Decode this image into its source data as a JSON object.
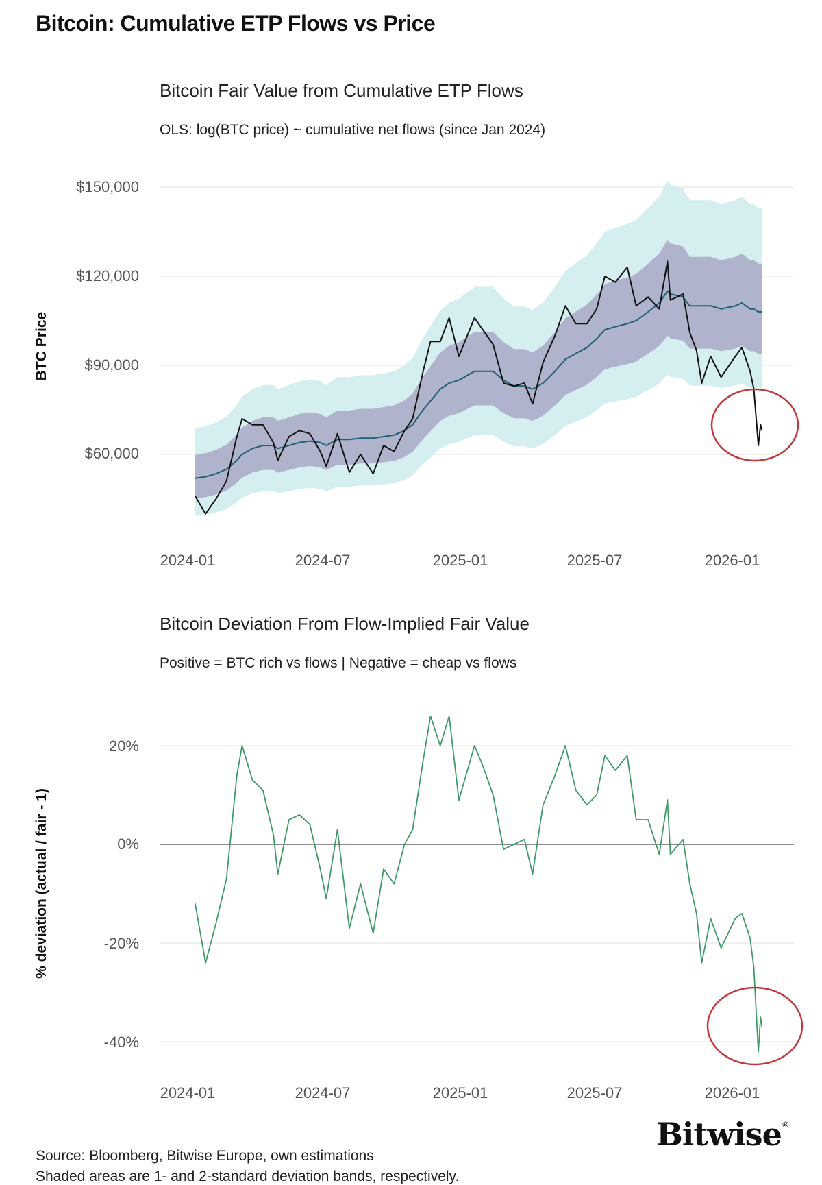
{
  "title": "Bitcoin: Cumulative ETP Flows vs Price",
  "footer": {
    "source": "Source: Bloomberg, Bitwise Europe, own estimations",
    "note": "Shaded areas are 1- and 2-standard deviation bands, respectively.",
    "logo": "Bitwise"
  },
  "colors": {
    "price": "#111111",
    "fair_value": "#1f5f70",
    "band_1sd": "#a9a8c6",
    "band_2sd": "#d5eef0",
    "deviation": "#3f9a68",
    "zero_line": "#666666",
    "highlight_circle": "#c0393b"
  },
  "chart_data": [
    {
      "type": "line",
      "title": "Bitcoin Fair Value from Cumulative ETP Flows",
      "subtitle": "OLS: log(BTC price) ~ cumulative net flows (since Jan 2024)",
      "ylabel": "BTC Price",
      "xlabel": "",
      "y_ticks": [
        "$60,000",
        "$90,000",
        "$120,000",
        "$150,000"
      ],
      "y_tick_values": [
        60000,
        90000,
        120000,
        150000
      ],
      "x_ticks": [
        "2024-01",
        "2024-07",
        "2025-01",
        "2025-07",
        "2026-01"
      ],
      "grid": true,
      "band_log_sd": 0.14,
      "bands": [
        "1-standard deviation",
        "2-standard deviation"
      ],
      "highlight": "circle around Feb 2026 price drop",
      "x": [
        "2024-01-11",
        "2024-01-25",
        "2024-02-08",
        "2024-02-22",
        "2024-03-07",
        "2024-03-14",
        "2024-03-28",
        "2024-04-11",
        "2024-04-25",
        "2024-05-01",
        "2024-05-16",
        "2024-05-30",
        "2024-06-13",
        "2024-06-27",
        "2024-07-05",
        "2024-07-20",
        "2024-08-05",
        "2024-08-20",
        "2024-09-06",
        "2024-09-20",
        "2024-10-04",
        "2024-10-18",
        "2024-10-29",
        "2024-11-12",
        "2024-11-22",
        "2024-12-05",
        "2024-12-17",
        "2024-12-30",
        "2025-01-20",
        "2025-01-31",
        "2025-02-14",
        "2025-02-28",
        "2025-03-14",
        "2025-03-28",
        "2025-04-08",
        "2025-04-22",
        "2025-05-08",
        "2025-05-22",
        "2025-06-05",
        "2025-06-20",
        "2025-07-03",
        "2025-07-14",
        "2025-07-28",
        "2025-08-13",
        "2025-08-25",
        "2025-09-10",
        "2025-09-25",
        "2025-10-06",
        "2025-10-10",
        "2025-10-27",
        "2025-11-05",
        "2025-11-14",
        "2025-11-21",
        "2025-12-03",
        "2025-12-17",
        "2026-01-05",
        "2026-01-14",
        "2026-01-25",
        "2026-01-30",
        "2026-02-05",
        "2026-02-08",
        "2026-02-10"
      ],
      "series": [
        {
          "key": "price",
          "values": [
            46000,
            40000,
            45000,
            51000,
            66000,
            72000,
            70000,
            70000,
            64000,
            58000,
            66000,
            68000,
            67000,
            61000,
            56000,
            67000,
            54000,
            60000,
            53500,
            63000,
            61000,
            68000,
            72000,
            88000,
            98000,
            98000,
            106000,
            93000,
            106000,
            102000,
            97000,
            84000,
            83000,
            84000,
            77000,
            91000,
            100000,
            110000,
            104000,
            104000,
            109000,
            120000,
            118000,
            123000,
            110000,
            113000,
            109000,
            125000,
            112000,
            114000,
            101000,
            95000,
            84000,
            93000,
            86000,
            93000,
            96000,
            88000,
            82000,
            63000,
            70000,
            68000
          ]
        },
        {
          "key": "fair_value",
          "values": [
            52000,
            52500,
            53500,
            55000,
            58000,
            60000,
            62000,
            63000,
            63000,
            62000,
            63000,
            64000,
            64500,
            64000,
            63000,
            65000,
            65000,
            65500,
            65500,
            66000,
            66500,
            68000,
            70000,
            75000,
            78000,
            82000,
            84000,
            85000,
            88000,
            88000,
            88000,
            85000,
            83000,
            83000,
            82000,
            84000,
            88000,
            92000,
            94000,
            96000,
            99000,
            102000,
            103000,
            104000,
            105000,
            108000,
            111000,
            115000,
            114000,
            113000,
            110000,
            110000,
            110000,
            110000,
            109000,
            110000,
            111000,
            109000,
            109000,
            108000,
            108000,
            108000
          ]
        }
      ]
    },
    {
      "type": "line",
      "title": "Bitcoin Deviation From Flow-Implied Fair Value",
      "subtitle": "Positive = BTC rich vs flows | Negative = cheap vs flows",
      "ylabel": "% deviation (actual / fair - 1)",
      "xlabel": "",
      "y_ticks": [
        "-40%",
        "-20%",
        "0%",
        "20%"
      ],
      "y_tick_values": [
        -40,
        -20,
        0,
        20
      ],
      "x_ticks": [
        "2024-01",
        "2024-07",
        "2025-01",
        "2025-07",
        "2026-01"
      ],
      "grid": true,
      "highlight": "circle around Feb 2026 deviation low",
      "series": [
        {
          "key": "deviation_pct",
          "values": [
            -12,
            -24,
            -16,
            -7,
            14,
            20,
            13,
            11,
            2,
            -6,
            5,
            6,
            4,
            -5,
            -11,
            3,
            -17,
            -8,
            -18,
            -5,
            -8,
            0,
            3,
            17,
            26,
            20,
            26,
            9,
            20,
            16,
            10,
            -1,
            0,
            1,
            -6,
            8,
            14,
            20,
            11,
            8,
            10,
            18,
            15,
            18,
            5,
            5,
            -2,
            9,
            -2,
            1,
            -8,
            -14,
            -24,
            -15,
            -21,
            -15,
            -14,
            -19,
            -25,
            -42,
            -35,
            -37
          ]
        }
      ]
    }
  ]
}
